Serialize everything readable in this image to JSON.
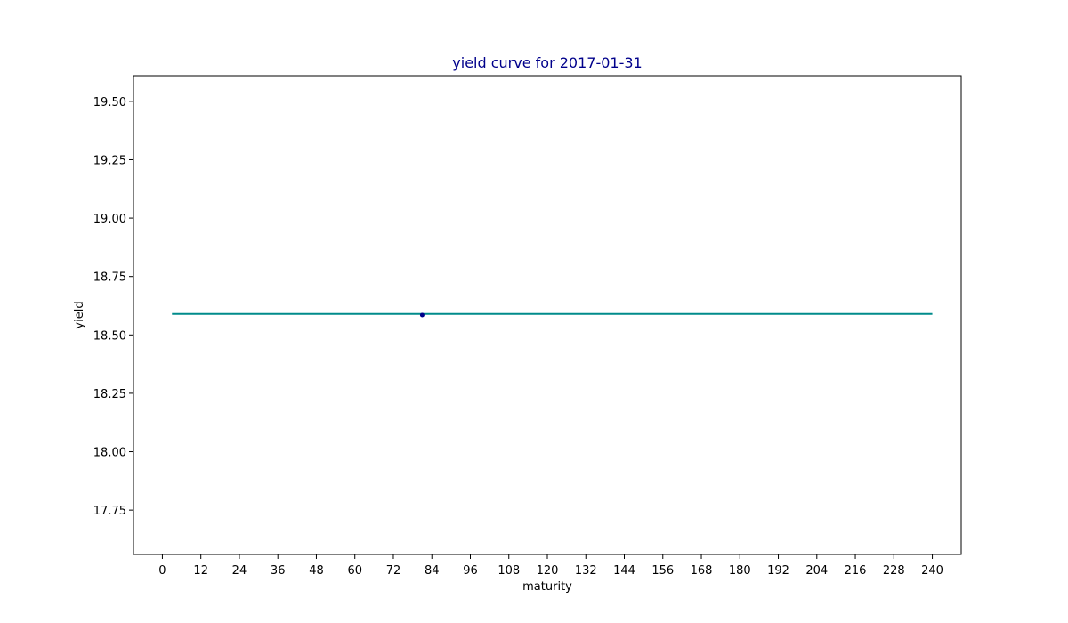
{
  "chart_data": {
    "type": "line",
    "title": "yield curve for 2017-01-31",
    "xlabel": "maturity",
    "ylabel": "yield",
    "xlim": [
      -9,
      249
    ],
    "ylim": [
      17.56,
      19.61
    ],
    "x_ticks": [
      0,
      12,
      24,
      36,
      48,
      60,
      72,
      84,
      96,
      108,
      120,
      132,
      144,
      156,
      168,
      180,
      192,
      204,
      216,
      228,
      240
    ],
    "y_ticks": [
      17.75,
      18.0,
      18.25,
      18.5,
      18.75,
      19.0,
      19.25,
      19.5
    ],
    "y_tick_labels": [
      "17.75",
      "18.00",
      "18.25",
      "18.50",
      "18.75",
      "19.00",
      "19.25",
      "19.50"
    ],
    "grid": false,
    "series": [
      {
        "kind": "line",
        "x": [
          3,
          240
        ],
        "y": [
          18.59,
          18.59
        ],
        "color": "#008b8b"
      },
      {
        "kind": "scatter",
        "x": [
          81
        ],
        "y": [
          18.585
        ],
        "color": "#00008b"
      }
    ],
    "title_color": "#00008b"
  }
}
